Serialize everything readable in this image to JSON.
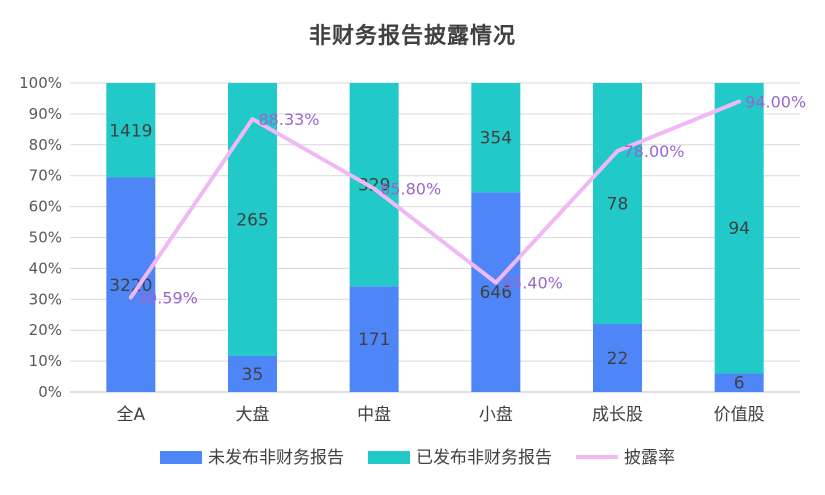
{
  "chart_data": {
    "type": "bar",
    "stacked": "percent",
    "title": "非财务报告披露情况",
    "categories": [
      "全A",
      "大盘",
      "中盘",
      "小盘",
      "成长股",
      "价值股"
    ],
    "series": [
      {
        "name": "未发布非财务报告",
        "values": [
          3220,
          35,
          171,
          646,
          22,
          6
        ],
        "color": "#4F86F7"
      },
      {
        "name": "已发布非财务报告",
        "values": [
          1419,
          265,
          329,
          354,
          78,
          94
        ],
        "color": "#21C9C9"
      }
    ],
    "line_series": {
      "name": "披露率",
      "values": [
        30.59,
        88.33,
        65.8,
        35.4,
        78.0,
        94.0
      ],
      "labels": [
        "30.59%",
        "88.33%",
        "65.80%",
        "35.40%",
        "78.00%",
        "94.00%"
      ],
      "color": "#F1B8F6"
    },
    "y_ticks": [
      "0%",
      "10%",
      "20%",
      "30%",
      "40%",
      "50%",
      "60%",
      "70%",
      "80%",
      "90%",
      "100%"
    ],
    "ylim": [
      0,
      100
    ],
    "grid": true,
    "legend_position": "bottom"
  }
}
